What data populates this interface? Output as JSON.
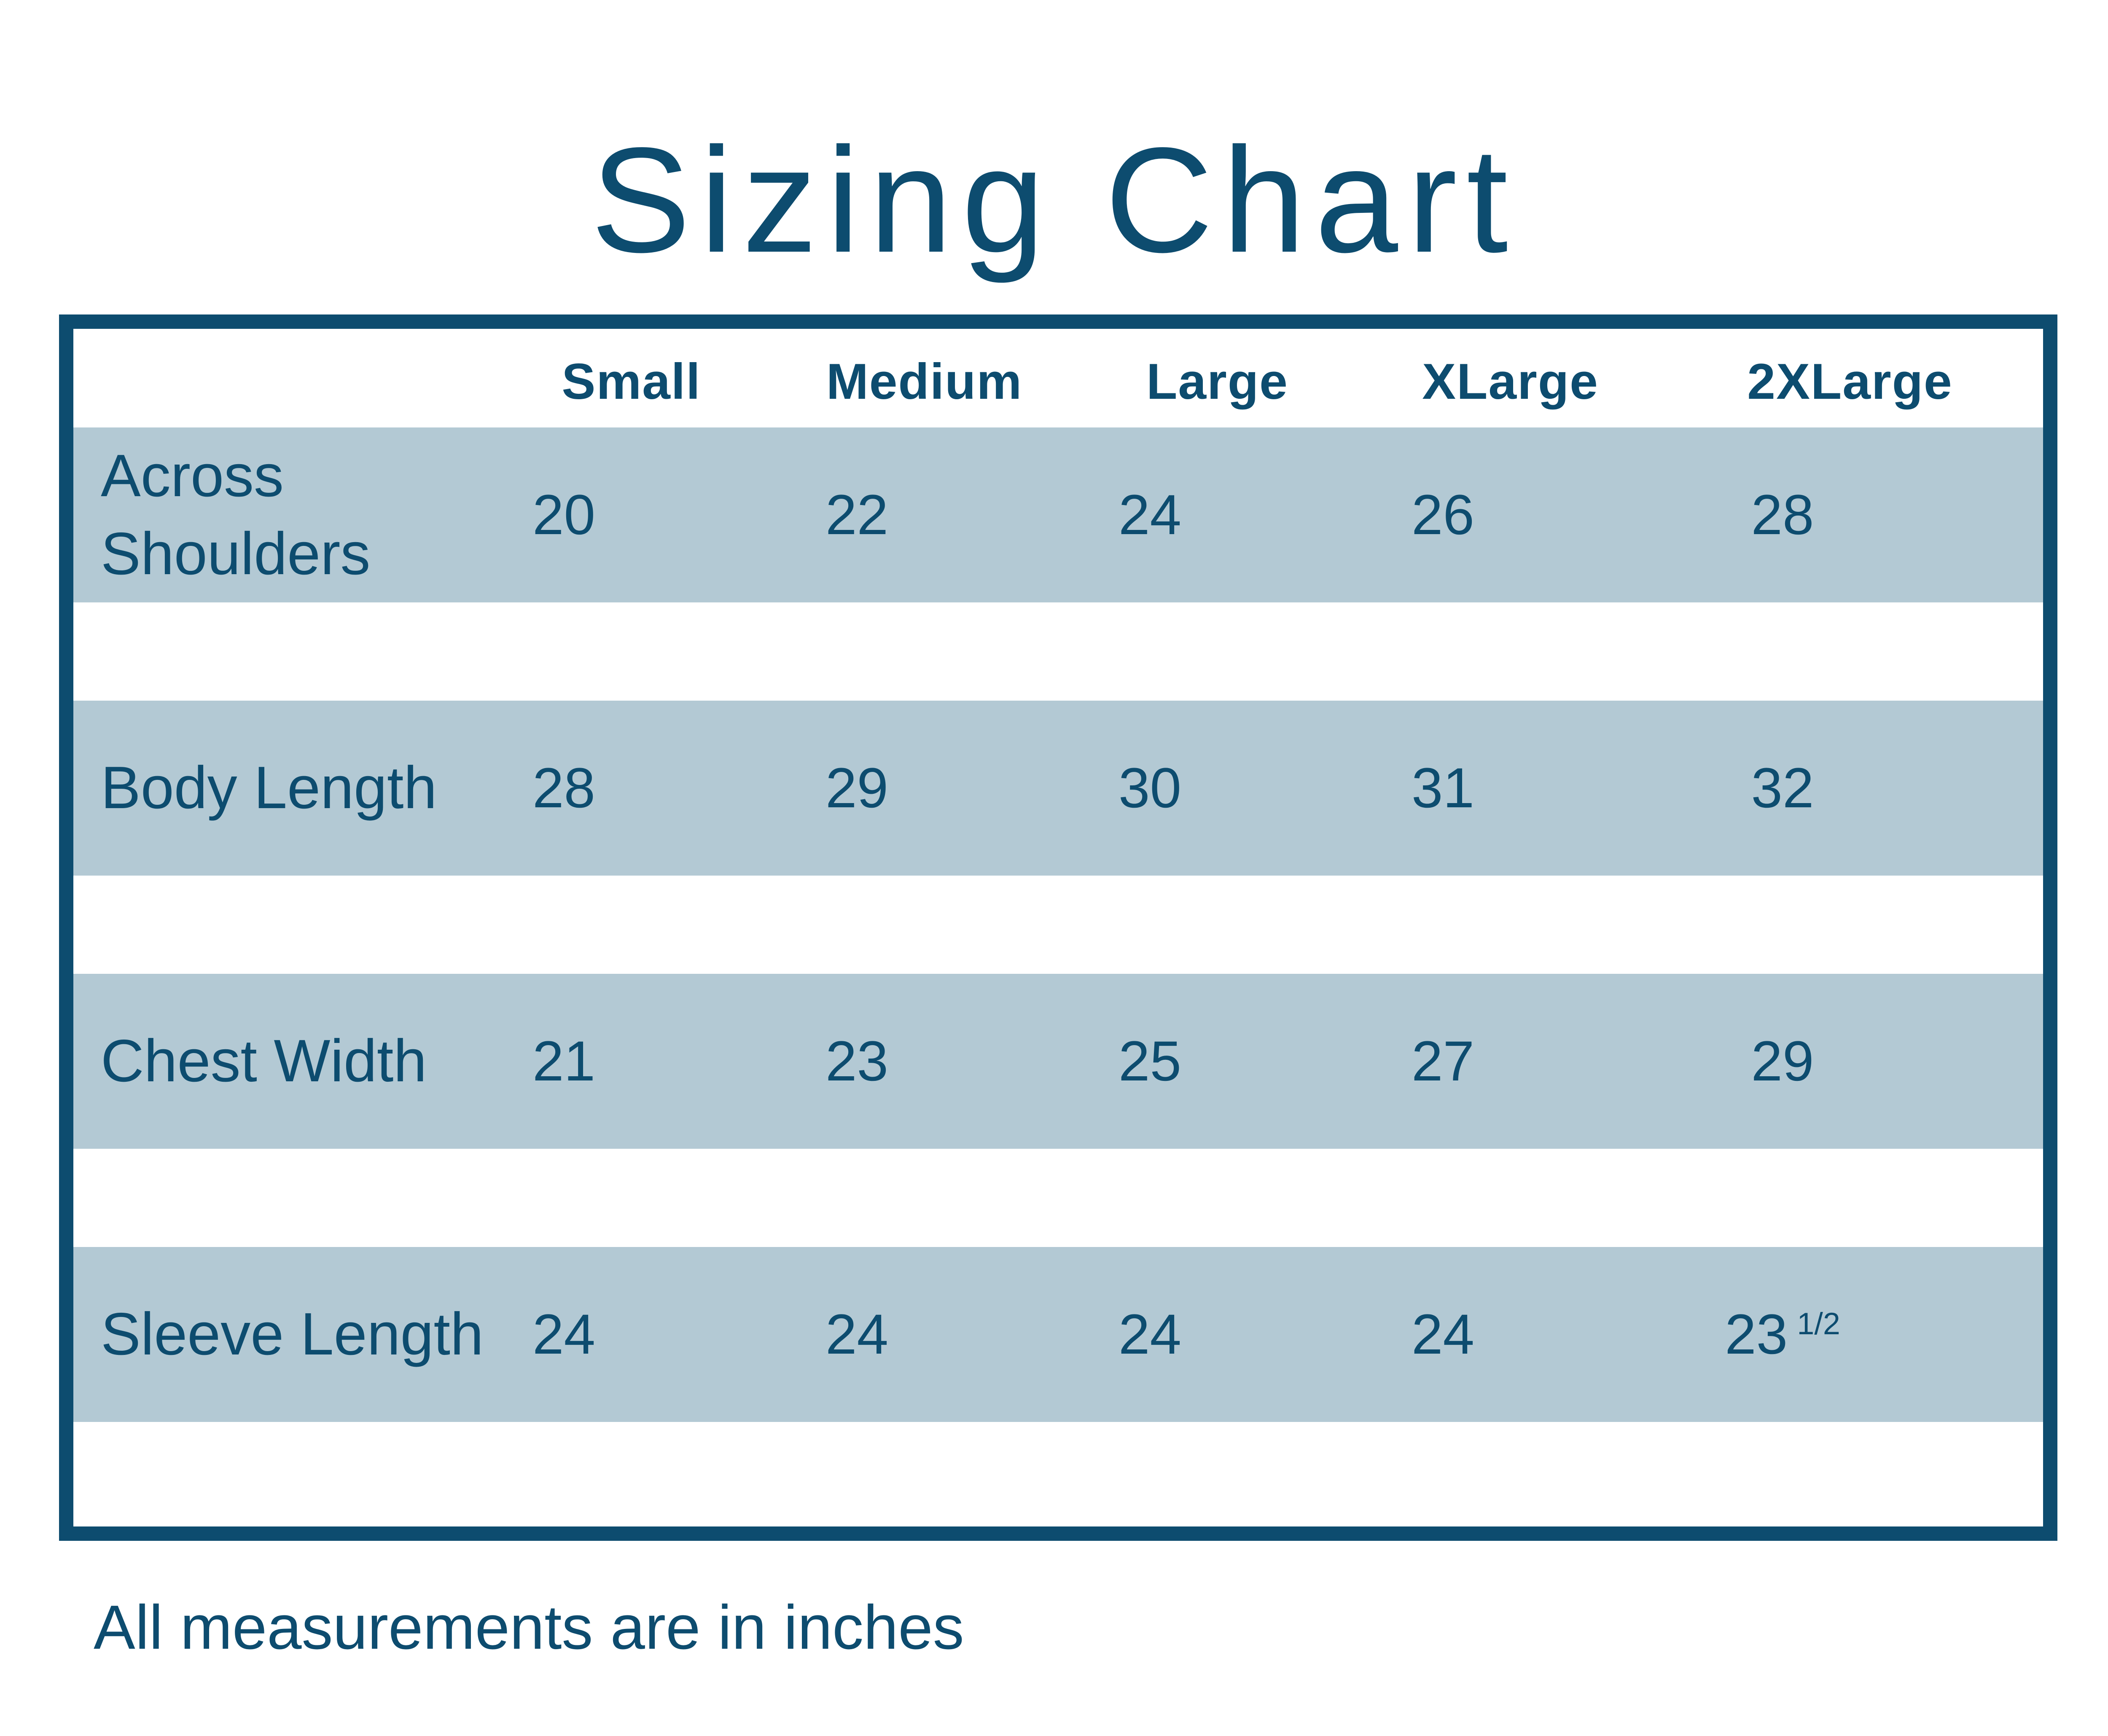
{
  "page": {
    "title": "Sizing Chart",
    "footnote": "All measurements are in inches"
  },
  "chart_data": {
    "type": "table",
    "title": "Sizing Chart",
    "columns": [
      "Small",
      "Medium",
      "Large",
      "XLarge",
      "2XLarge"
    ],
    "rows": [
      {
        "label": "Across Shoulders",
        "values": [
          "20",
          "22",
          "24",
          "26",
          "28"
        ]
      },
      {
        "label": "Body Length",
        "values": [
          "28",
          "29",
          "30",
          "31",
          "32"
        ]
      },
      {
        "label": "Chest Width",
        "values": [
          "21",
          "23",
          "25",
          "27",
          "29"
        ]
      },
      {
        "label": "Sleeve Length",
        "values": [
          "24",
          "24",
          "24",
          "24",
          "23 1/2"
        ]
      }
    ],
    "footnote": "All measurements are in inches",
    "units": "inches"
  },
  "table_display": {
    "sleeve_2xlarge": {
      "whole": "23",
      "fraction": "1/2"
    }
  },
  "colors": {
    "text_dark_blue": "#0d4c6f",
    "border_dark_blue": "#0d4c6f",
    "row_band_blue": "#b3c9d4",
    "background": "#ffffff"
  }
}
